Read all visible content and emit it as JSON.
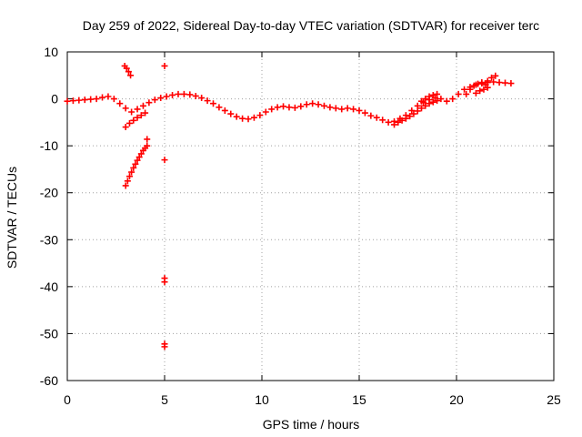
{
  "chart_data": {
    "type": "scatter",
    "title": "Day 259 of 2022, Sidereal Day-to-day VTEC variation (SDTVAR) for receiver terc",
    "xlabel": "GPS time / hours",
    "ylabel": "SDTVAR / TECUs",
    "xlim": [
      0,
      25
    ],
    "ylim": [
      -60,
      10
    ],
    "xticks": [
      "0",
      "5",
      "10",
      "15",
      "20",
      "25"
    ],
    "yticks": [
      "10",
      "0",
      "-10",
      "-20",
      "-30",
      "-40",
      "-50",
      "-60"
    ],
    "grid": true,
    "marker": "plus",
    "color": "#ff0000",
    "series": [
      {
        "name": "main-trace",
        "x": [
          0.0,
          0.3,
          0.6,
          0.9,
          1.2,
          1.5,
          1.8,
          2.1,
          2.4,
          2.7,
          3.0,
          3.3,
          3.6,
          3.9,
          4.2,
          4.5,
          4.8,
          5.1,
          5.4,
          5.7,
          6.0,
          6.3,
          6.6,
          6.9,
          7.2,
          7.5,
          7.8,
          8.1,
          8.4,
          8.7,
          9.0,
          9.3,
          9.6,
          9.9,
          10.2,
          10.5,
          10.8,
          11.1,
          11.4,
          11.7,
          12.0,
          12.3,
          12.6,
          12.9,
          13.2,
          13.5,
          13.8,
          14.1,
          14.4,
          14.7,
          15.0,
          15.3,
          15.6,
          15.9,
          16.2,
          16.5,
          16.8,
          17.1,
          17.4,
          17.7,
          18.0,
          18.3,
          18.6,
          18.9,
          19.2,
          19.5,
          19.8,
          20.1,
          20.4,
          20.7,
          21.0,
          21.3,
          21.6,
          21.9,
          22.2,
          22.5,
          22.8
        ],
        "y": [
          -0.5,
          -0.4,
          -0.3,
          -0.2,
          -0.1,
          0.0,
          0.3,
          0.5,
          0.0,
          -1.0,
          -2.0,
          -2.8,
          -2.2,
          -1.5,
          -0.8,
          -0.2,
          0.2,
          0.5,
          0.8,
          1.0,
          1.0,
          0.9,
          0.6,
          0.2,
          -0.4,
          -1.0,
          -1.8,
          -2.5,
          -3.2,
          -3.8,
          -4.2,
          -4.3,
          -4.0,
          -3.5,
          -2.8,
          -2.2,
          -1.8,
          -1.6,
          -1.8,
          -1.9,
          -1.6,
          -1.2,
          -1.0,
          -1.2,
          -1.5,
          -1.8,
          -2.0,
          -2.2,
          -2.0,
          -2.2,
          -2.5,
          -3.0,
          -3.6,
          -4.0,
          -4.5,
          -5.0,
          -4.8,
          -4.2,
          -3.5,
          -2.5,
          -1.5,
          -0.8,
          -0.2,
          0.2,
          0.0,
          -0.5,
          0.0,
          1.0,
          2.0,
          2.5,
          3.0,
          3.3,
          3.5,
          3.6,
          3.5,
          3.4,
          3.3
        ]
      },
      {
        "name": "upper-arcs",
        "x": [
          18.2,
          18.4,
          18.6,
          18.8,
          19.0,
          20.5,
          20.7,
          20.9,
          21.1,
          21.3,
          21.5,
          21.6,
          21.8,
          22.0
        ],
        "y": [
          -0.5,
          0.0,
          0.5,
          0.8,
          1.0,
          1.0,
          2.0,
          2.8,
          3.2,
          3.5,
          3.0,
          3.8,
          4.5,
          4.9
        ]
      },
      {
        "name": "lower-arcs",
        "x": [
          16.8,
          17.0,
          17.2,
          17.4,
          17.6,
          17.8,
          18.0,
          18.2,
          18.4,
          18.6,
          18.8,
          19.0,
          21.0,
          21.2,
          21.4,
          21.6
        ],
        "y": [
          -5.5,
          -5.0,
          -4.6,
          -4.2,
          -3.7,
          -3.2,
          -2.6,
          -2.0,
          -1.5,
          -1.0,
          -0.7,
          -0.4,
          1.2,
          1.7,
          2.0,
          2.4
        ]
      },
      {
        "name": "descending-arc",
        "x": [
          2.95,
          3.05,
          3.15,
          3.25
        ],
        "y": [
          7.0,
          6.5,
          5.8,
          5.0
        ]
      },
      {
        "name": "secondary-arc",
        "x": [
          3.0,
          3.2,
          3.4,
          3.6,
          3.8,
          4.0
        ],
        "y": [
          -6.0,
          -5.2,
          -4.6,
          -4.0,
          -3.5,
          -3.0
        ]
      },
      {
        "name": "rising-curve",
        "x": [
          3.0,
          3.1,
          3.2,
          3.3,
          3.4,
          3.5,
          3.6,
          3.7,
          3.8,
          3.9,
          4.0,
          4.1
        ],
        "y": [
          -18.5,
          -17.5,
          -16.5,
          -15.6,
          -14.7,
          -13.9,
          -13.1,
          -12.4,
          -11.7,
          -11.0,
          -10.5,
          -10.0
        ]
      },
      {
        "name": "outliers",
        "x": [
          5.0,
          4.1,
          5.0,
          5.0,
          5.0,
          5.0,
          5.0
        ],
        "y": [
          7.0,
          -8.6,
          -13.0,
          -38.2,
          -39.0,
          -52.2,
          -52.8
        ]
      }
    ]
  }
}
